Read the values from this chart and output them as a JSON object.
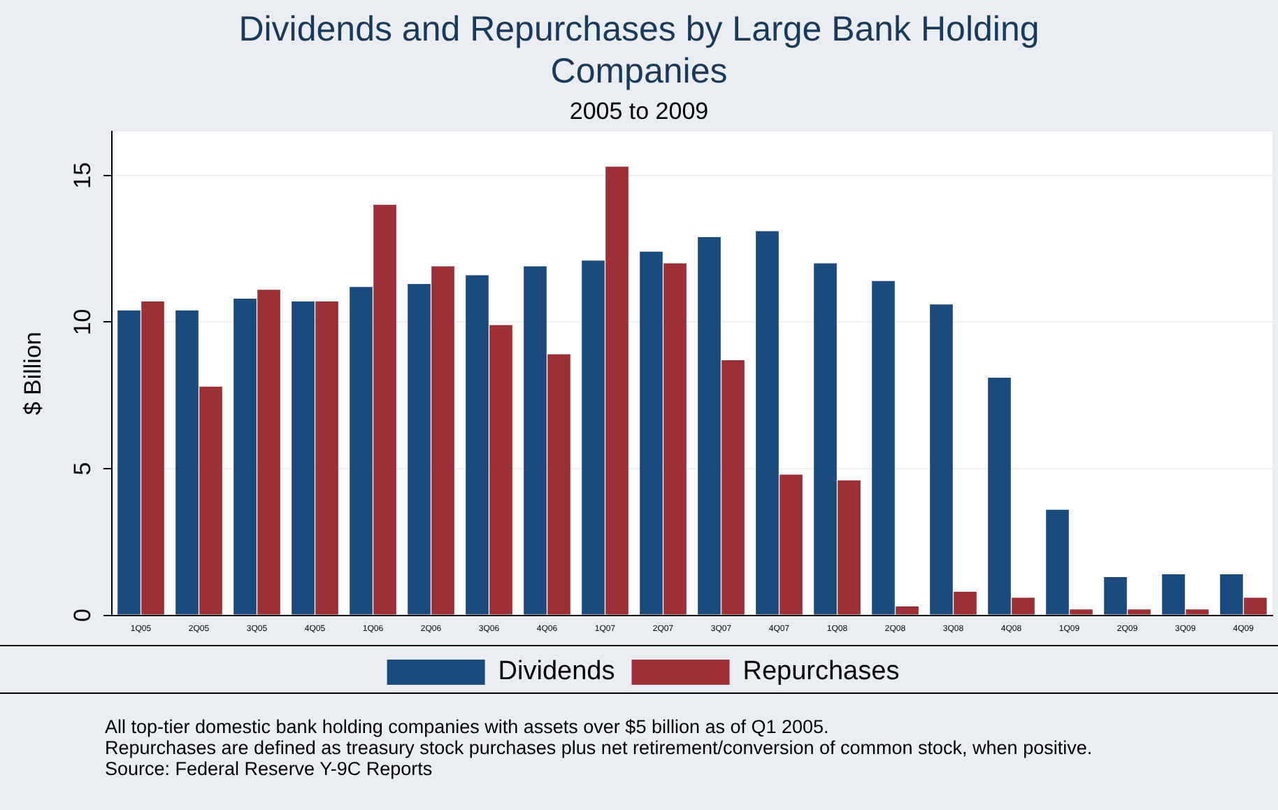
{
  "chart_data": {
    "type": "bar",
    "title": "Dividends and Repurchases by Large Bank Holding Companies",
    "subtitle": "2005 to 2009",
    "ylabel": "$ Billion",
    "categories": [
      "1Q05",
      "2Q05",
      "3Q05",
      "4Q05",
      "1Q06",
      "2Q06",
      "3Q06",
      "4Q06",
      "1Q07",
      "2Q07",
      "3Q07",
      "4Q07",
      "1Q08",
      "2Q08",
      "3Q08",
      "4Q08",
      "1Q09",
      "2Q09",
      "3Q09",
      "4Q09"
    ],
    "series": [
      {
        "name": "Dividends",
        "color": "#1b4a7c",
        "values": [
          10.4,
          10.4,
          10.8,
          10.7,
          11.2,
          11.3,
          11.6,
          11.9,
          12.1,
          12.4,
          12.9,
          13.1,
          12.0,
          11.4,
          10.6,
          8.1,
          3.6,
          1.3,
          1.4,
          1.4
        ]
      },
      {
        "name": "Repurchases",
        "color": "#9c3036",
        "values": [
          10.7,
          7.8,
          11.1,
          10.7,
          14.0,
          11.9,
          9.9,
          8.9,
          15.3,
          12.0,
          8.7,
          4.8,
          4.6,
          0.3,
          0.8,
          0.6,
          0.2,
          0.2,
          0.2,
          0.6
        ]
      }
    ],
    "ylim": [
      0,
      16.5
    ],
    "yticks": [
      0,
      5,
      10,
      15
    ],
    "grid": "y",
    "legend": "bottom",
    "annotations": [
      "All top-tier domestic bank holding companies with assets over $5 billion as of Q1 2005.",
      "Repurchases are defined as treasury stock purchases plus net retirement/conversion of common stock, when positive.",
      "Source:  Federal Reserve Y-9C Reports"
    ]
  }
}
